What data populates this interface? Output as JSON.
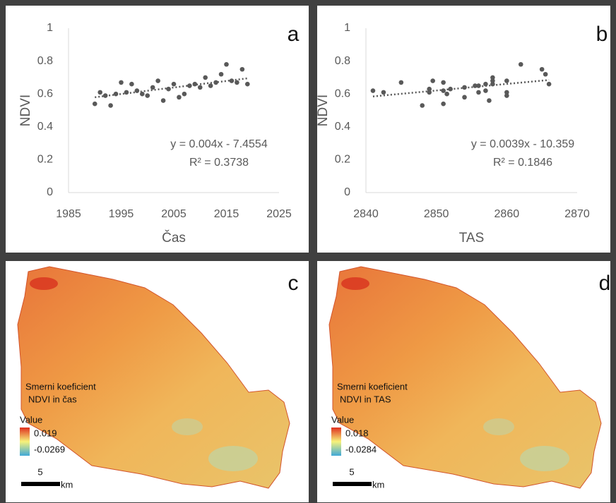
{
  "chart_data": [
    {
      "type": "scatter",
      "panel": "a",
      "x_label": "Čas",
      "y_label": "NDVI",
      "color": "#595959",
      "x": [
        1990,
        1991,
        1992,
        1993,
        1994,
        1995,
        1996,
        1997,
        1998,
        1999,
        2000,
        2001,
        2002,
        2003,
        2004,
        2005,
        2006,
        2007,
        2008,
        2009,
        2010,
        2011,
        2012,
        2013,
        2014,
        2015,
        2016,
        2017,
        2018,
        2019
      ],
      "values": [
        0.54,
        0.61,
        0.59,
        0.53,
        0.6,
        0.67,
        0.61,
        0.66,
        0.62,
        0.6,
        0.59,
        0.64,
        0.68,
        0.56,
        0.63,
        0.66,
        0.58,
        0.6,
        0.65,
        0.66,
        0.64,
        0.7,
        0.65,
        0.67,
        0.72,
        0.78,
        0.68,
        0.67,
        0.75,
        0.66
      ],
      "trendline": {
        "x": [
          1990,
          2019
        ],
        "y": [
          0.58,
          0.695
        ]
      },
      "equation": "y = 0.004x - 7.4554",
      "r_squared": "R² = 0.3738",
      "xlim": [
        1985,
        2025
      ],
      "xticks": [
        1985,
        1995,
        2005,
        2015,
        2025
      ],
      "ylim": [
        0,
        1
      ],
      "yticks": [
        0,
        0.2,
        0.4,
        0.6,
        0.8,
        1
      ]
    },
    {
      "type": "scatter",
      "panel": "b",
      "x_label": "TAS",
      "y_label": "NDVI",
      "color": "#595959",
      "x": [
        2841,
        2842.5,
        2845,
        2848,
        2849,
        2849.5,
        2849,
        2851,
        2851,
        2851,
        2851.5,
        2852,
        2854,
        2854,
        2855.5,
        2856,
        2856,
        2857,
        2857,
        2857.5,
        2858,
        2858,
        2858,
        2860,
        2860,
        2860,
        2862,
        2865,
        2865.5,
        2866
      ],
      "values": [
        0.62,
        0.61,
        0.67,
        0.53,
        0.63,
        0.68,
        0.61,
        0.54,
        0.67,
        0.62,
        0.6,
        0.63,
        0.64,
        0.58,
        0.65,
        0.65,
        0.61,
        0.62,
        0.66,
        0.56,
        0.66,
        0.7,
        0.68,
        0.68,
        0.61,
        0.59,
        0.78,
        0.75,
        0.72,
        0.66
      ],
      "trendline": {
        "x": [
          2841,
          2866
        ],
        "y": [
          0.585,
          0.685
        ]
      },
      "equation": "y = 0.0039x - 10.359",
      "r_squared": "R² = 0.1846",
      "xlim": [
        2840,
        2870
      ],
      "xticks": [
        2840,
        2850,
        2860,
        2870
      ],
      "ylim": [
        0,
        1
      ],
      "yticks": [
        0,
        0.2,
        0.4,
        0.6,
        0.8,
        1
      ]
    }
  ],
  "maps": [
    {
      "panel": "c",
      "legend_title": [
        "Smerni koeficient",
        "NDVI in čas"
      ],
      "value_label": "Value",
      "high": "0.019",
      "low": "-0.0269",
      "scale": "5",
      "unit": "km"
    },
    {
      "panel": "d",
      "legend_title": [
        "Smerni koeficient",
        "NDVI in TAS"
      ],
      "value_label": "Value",
      "high": "0.018",
      "low": "-0.0284",
      "scale": "5",
      "unit": "km"
    }
  ]
}
